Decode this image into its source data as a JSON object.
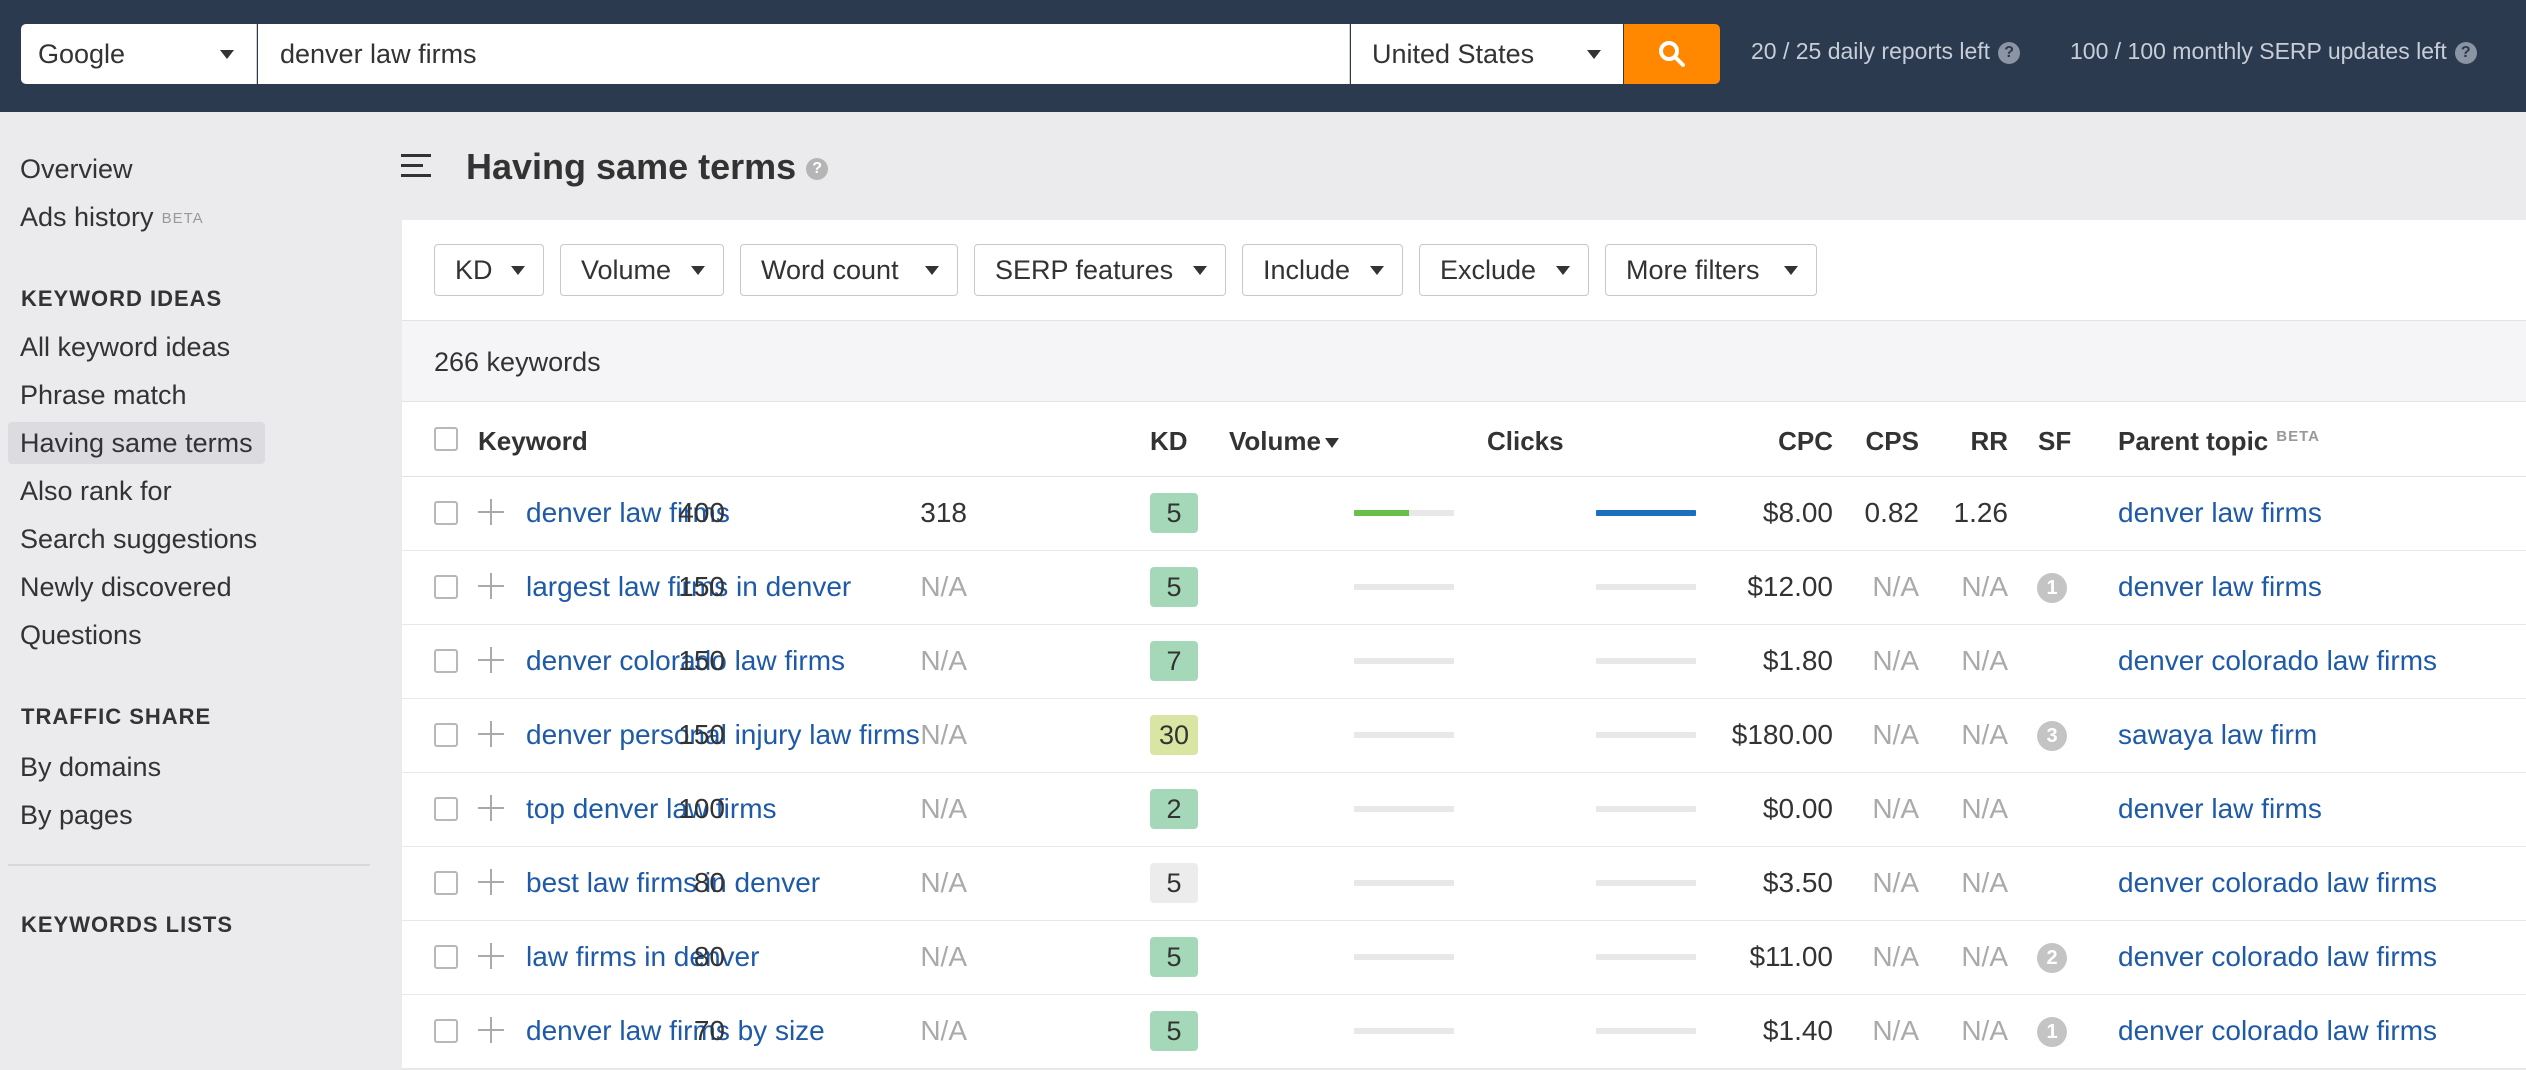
{
  "topbar": {
    "engine": "Google",
    "query": "denver law firms",
    "country": "United States",
    "daily_reports": "20 / 25 daily reports left",
    "serp_updates": "100 / 100 monthly SERP updates left",
    "help_glyph": "?"
  },
  "sidebar": {
    "top_items": [
      {
        "label": "Overview"
      },
      {
        "label": "Ads history",
        "badge": "BETA"
      }
    ],
    "sections": [
      {
        "title": "KEYWORD IDEAS",
        "items": [
          "All keyword ideas",
          "Phrase match",
          "Having same terms",
          "Also rank for",
          "Search suggestions",
          "Newly discovered",
          "Questions"
        ]
      },
      {
        "title": "TRAFFIC SHARE",
        "items": [
          "By domains",
          "By pages"
        ]
      },
      {
        "title": "KEYWORDS LISTS",
        "items": []
      }
    ],
    "active_item": "Having same terms"
  },
  "header": {
    "title": "Having same terms",
    "help_glyph": "?"
  },
  "filters": [
    "KD",
    "Volume",
    "Word count",
    "SERP features",
    "Include",
    "Exclude",
    "More filters"
  ],
  "results": {
    "count_label": "266 keywords"
  },
  "table": {
    "columns": {
      "keyword": "Keyword",
      "kd": "KD",
      "volume": "Volume",
      "clicks": "Clicks",
      "cpc": "CPC",
      "cps": "CPS",
      "rr": "RR",
      "sf": "SF",
      "parent": "Parent topic",
      "parent_badge": "BETA"
    },
    "rows": [
      {
        "keyword": "denver law firms",
        "kd": "5",
        "kd_color": "#a4d8b8",
        "volume": "400",
        "volume_fill": 0.55,
        "volume_color": "#6abf4b",
        "clicks": "318",
        "clicks_fill": 1.0,
        "clicks_color": "#1a6fbf",
        "cpc": "$8.00",
        "cps": "0.82",
        "rr": "1.26",
        "sf": "",
        "parent": "denver law firms"
      },
      {
        "keyword": "largest law firms in denver",
        "kd": "5",
        "kd_color": "#a4d8b8",
        "volume": "150",
        "volume_fill": 0,
        "volume_color": "#6abf4b",
        "clicks": "N/A",
        "clicks_fill": 0,
        "clicks_color": "#1a6fbf",
        "cpc": "$12.00",
        "cps": "N/A",
        "rr": "N/A",
        "sf": "1",
        "parent": "denver law firms"
      },
      {
        "keyword": "denver colorado law firms",
        "kd": "7",
        "kd_color": "#a4d8b8",
        "volume": "150",
        "volume_fill": 0,
        "volume_color": "#6abf4b",
        "clicks": "N/A",
        "clicks_fill": 0,
        "clicks_color": "#1a6fbf",
        "cpc": "$1.80",
        "cps": "N/A",
        "rr": "N/A",
        "sf": "",
        "parent": "denver colorado law firms"
      },
      {
        "keyword": "denver personal injury law firms",
        "kd": "30",
        "kd_color": "#d9e6a3",
        "volume": "150",
        "volume_fill": 0,
        "volume_color": "#6abf4b",
        "clicks": "N/A",
        "clicks_fill": 0,
        "clicks_color": "#1a6fbf",
        "cpc": "$180.00",
        "cps": "N/A",
        "rr": "N/A",
        "sf": "3",
        "parent": "sawaya law firm"
      },
      {
        "keyword": "top denver law firms",
        "kd": "2",
        "kd_color": "#a4d8b8",
        "volume": "100",
        "volume_fill": 0,
        "volume_color": "#6abf4b",
        "clicks": "N/A",
        "clicks_fill": 0,
        "clicks_color": "#1a6fbf",
        "cpc": "$0.00",
        "cps": "N/A",
        "rr": "N/A",
        "sf": "",
        "parent": "denver law firms"
      },
      {
        "keyword": "best law firms in denver",
        "kd": "5",
        "kd_color": "#ececec",
        "volume": "80",
        "volume_fill": 0,
        "volume_color": "#6abf4b",
        "clicks": "N/A",
        "clicks_fill": 0,
        "clicks_color": "#1a6fbf",
        "cpc": "$3.50",
        "cps": "N/A",
        "rr": "N/A",
        "sf": "",
        "parent": "denver colorado law firms"
      },
      {
        "keyword": "law firms in denver",
        "kd": "5",
        "kd_color": "#a4d8b8",
        "volume": "80",
        "volume_fill": 0,
        "volume_color": "#6abf4b",
        "clicks": "N/A",
        "clicks_fill": 0,
        "clicks_color": "#1a6fbf",
        "cpc": "$11.00",
        "cps": "N/A",
        "rr": "N/A",
        "sf": "2",
        "parent": "denver colorado law firms"
      },
      {
        "keyword": "denver law firms by size",
        "kd": "5",
        "kd_color": "#a4d8b8",
        "volume": "70",
        "volume_fill": 0,
        "volume_color": "#6abf4b",
        "clicks": "N/A",
        "clicks_fill": 0,
        "clicks_color": "#1a6fbf",
        "cpc": "$1.40",
        "cps": "N/A",
        "rr": "N/A",
        "sf": "1",
        "parent": "denver colorado law firms"
      }
    ]
  },
  "colors": {
    "topbar_bg": "#2c3a4f",
    "accent_orange": "#ff8800",
    "link_blue": "#1e5aa8",
    "kd_easy": "#a4d8b8",
    "kd_medium": "#d9e6a3"
  }
}
